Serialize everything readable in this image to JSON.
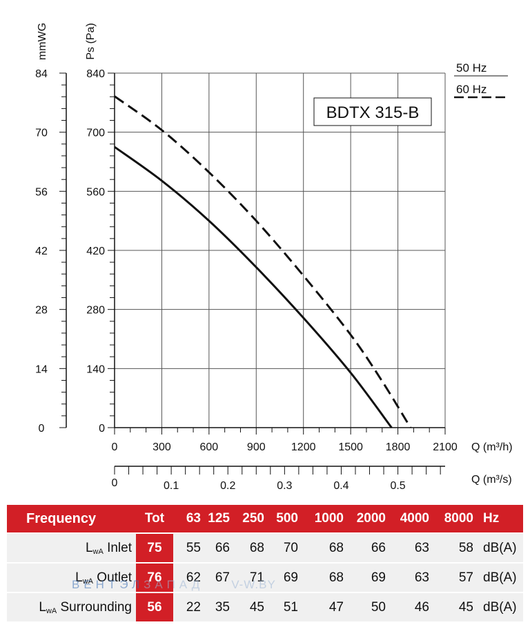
{
  "chart_data": {
    "type": "line",
    "title": "BDTX 315-B",
    "y_axis_left_label": "mmWG",
    "y_axis_right_label": "Ps (Pa)",
    "y_ticks_mmwg": [
      "0",
      "14",
      "28",
      "42",
      "56",
      "70",
      "84"
    ],
    "y_ticks_pa": [
      "0",
      "140",
      "280",
      "420",
      "560",
      "700",
      "840"
    ],
    "ylim_pa": [
      0,
      840
    ],
    "x_axis_label_m3h": "Q (m³/h)",
    "x_ticks_m3h": [
      "0",
      "300",
      "600",
      "900",
      "1200",
      "1500",
      "1800",
      "2100"
    ],
    "xlim_m3h": [
      0,
      2100
    ],
    "x_axis_label_m3s": "Q (m³/s)",
    "x_ticks_m3s": [
      "0",
      "0.1",
      "0.2",
      "0.3",
      "0.4",
      "0.5"
    ],
    "legend": [
      {
        "label": "50 Hz",
        "style": "solid"
      },
      {
        "label": "60 Hz",
        "style": "dashed"
      }
    ],
    "legend_placement": "top-right",
    "grid": true,
    "series": [
      {
        "name": "50 Hz",
        "style": "solid",
        "x": [
          0,
          300,
          600,
          900,
          1200,
          1500,
          1760
        ],
        "y": [
          665,
          585,
          490,
          380,
          260,
          130,
          0
        ]
      },
      {
        "name": "60 Hz",
        "style": "dashed",
        "x": [
          0,
          300,
          600,
          900,
          1200,
          1500,
          1700,
          1880
        ],
        "y": [
          785,
          705,
          605,
          490,
          360,
          220,
          110,
          0
        ]
      }
    ]
  },
  "table": {
    "header": {
      "label": "Frequency",
      "tot": "Tot",
      "bands": [
        "63",
        "125",
        "250",
        "500",
        "1000",
        "2000",
        "4000",
        "8000"
      ],
      "unit": "Hz"
    },
    "rows": [
      {
        "label_main": "L",
        "label_sub": "wA",
        "label_rest": " Inlet",
        "tot": "75",
        "values": [
          "55",
          "66",
          "68",
          "70",
          "68",
          "66",
          "63",
          "58"
        ],
        "unit": "dB(A)"
      },
      {
        "label_main": "L",
        "label_sub": "wA",
        "label_rest": " Outlet",
        "tot": "76",
        "values": [
          "62",
          "67",
          "71",
          "69",
          "68",
          "69",
          "63",
          "57"
        ],
        "unit": "dB(A)"
      },
      {
        "label_main": "L",
        "label_sub": "wA",
        "label_rest": " Surrounding",
        "tot": "56",
        "values": [
          "22",
          "35",
          "45",
          "51",
          "47",
          "50",
          "46",
          "45"
        ],
        "unit": "dB(A)"
      }
    ]
  },
  "watermark": {
    "brand": "ВЕНТЭЛ",
    "brand_rest": "ЗАПАД",
    "site": "V-W.BY"
  },
  "colors": {
    "accent_red": "#d21f26",
    "row_bg": "#f0f0f0"
  }
}
